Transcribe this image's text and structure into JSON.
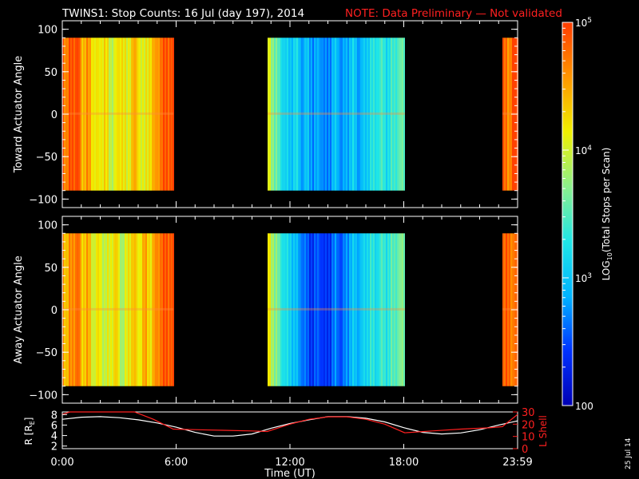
{
  "header": {
    "title": "TWINS1: Stop Counts: 16 Jul (day 197), 2014",
    "note": "NOTE: Data Preliminary — Not validated",
    "title_color": "#ffffff",
    "note_color": "#ff2020"
  },
  "side_date": "25 Jul 14",
  "chart_data": [
    {
      "type": "heatmap",
      "panel": "toward",
      "ylabel": "Toward Actuator Angle",
      "ylim": [
        -110,
        110
      ],
      "yticks": [
        "100",
        "50",
        "0",
        "−50",
        "−100"
      ],
      "xlim_hours": [
        0,
        24
      ],
      "data_y_range": [
        -90,
        90
      ],
      "data_intervals_hours": [
        [
          0.0,
          5.85
        ],
        [
          10.8,
          18.05
        ],
        [
          23.2,
          24.0
        ]
      ],
      "log10_counts_profile": [
        [
          0.0,
          4.95
        ],
        [
          0.15,
          4.6
        ],
        [
          0.4,
          4.9
        ],
        [
          0.8,
          4.95
        ],
        [
          1.0,
          4.4
        ],
        [
          1.3,
          4.6
        ],
        [
          1.6,
          4.2
        ],
        [
          1.9,
          4.1
        ],
        [
          2.2,
          4.3
        ],
        [
          2.5,
          3.9
        ],
        [
          2.8,
          4.1
        ],
        [
          3.1,
          4.3
        ],
        [
          3.4,
          3.95
        ],
        [
          3.7,
          4.5
        ],
        [
          4.0,
          4.2
        ],
        [
          4.3,
          4.0
        ],
        [
          4.6,
          4.3
        ],
        [
          4.9,
          4.5
        ],
        [
          5.2,
          4.8
        ],
        [
          5.5,
          4.9
        ],
        [
          5.85,
          4.9
        ],
        [
          10.8,
          4.1
        ],
        [
          11.1,
          3.7
        ],
        [
          11.4,
          3.4
        ],
        [
          11.7,
          3.1
        ],
        [
          12.0,
          3.0
        ],
        [
          12.3,
          3.2
        ],
        [
          12.6,
          2.8
        ],
        [
          12.9,
          3.0
        ],
        [
          13.2,
          2.7
        ],
        [
          13.5,
          2.9
        ],
        [
          13.8,
          2.6
        ],
        [
          14.1,
          2.8
        ],
        [
          14.4,
          3.0
        ],
        [
          14.7,
          2.7
        ],
        [
          15.0,
          2.9
        ],
        [
          15.3,
          3.1
        ],
        [
          15.6,
          2.8
        ],
        [
          15.9,
          3.0
        ],
        [
          16.2,
          3.2
        ],
        [
          16.5,
          3.3
        ],
        [
          16.8,
          3.4
        ],
        [
          17.1,
          3.2
        ],
        [
          17.4,
          3.4
        ],
        [
          17.7,
          3.5
        ],
        [
          18.05,
          3.6
        ],
        [
          23.2,
          4.8
        ],
        [
          23.5,
          4.6
        ],
        [
          23.7,
          4.9
        ],
        [
          24.0,
          4.95
        ]
      ]
    },
    {
      "type": "heatmap",
      "panel": "away",
      "ylabel": "Away Actuator Angle",
      "ylim": [
        -110,
        110
      ],
      "yticks": [
        "100",
        "50",
        "0",
        "−50",
        "−100"
      ],
      "xlim_hours": [
        0,
        24
      ],
      "data_y_range": [
        -90,
        90
      ],
      "data_intervals_hours": [
        [
          0.0,
          5.85
        ],
        [
          10.8,
          18.05
        ],
        [
          23.2,
          24.0
        ]
      ],
      "log10_counts_profile": [
        [
          0.0,
          4.7
        ],
        [
          0.15,
          4.3
        ],
        [
          0.4,
          4.6
        ],
        [
          0.8,
          4.8
        ],
        [
          1.0,
          4.3
        ],
        [
          1.3,
          4.5
        ],
        [
          1.6,
          4.0
        ],
        [
          1.9,
          4.2
        ],
        [
          2.2,
          3.9
        ],
        [
          2.5,
          4.1
        ],
        [
          2.8,
          4.3
        ],
        [
          3.1,
          3.8
        ],
        [
          3.4,
          4.1
        ],
        [
          3.7,
          4.4
        ],
        [
          4.0,
          4.1
        ],
        [
          4.3,
          4.5
        ],
        [
          4.6,
          4.2
        ],
        [
          4.9,
          4.6
        ],
        [
          5.2,
          4.8
        ],
        [
          5.5,
          4.9
        ],
        [
          5.85,
          4.85
        ],
        [
          10.8,
          4.2
        ],
        [
          11.1,
          3.8
        ],
        [
          11.4,
          3.5
        ],
        [
          11.7,
          3.2
        ],
        [
          12.0,
          3.1
        ],
        [
          12.3,
          2.9
        ],
        [
          12.6,
          2.7
        ],
        [
          12.9,
          2.5
        ],
        [
          13.2,
          2.4
        ],
        [
          13.5,
          2.6
        ],
        [
          13.8,
          2.3
        ],
        [
          14.1,
          2.5
        ],
        [
          14.4,
          2.7
        ],
        [
          14.7,
          2.5
        ],
        [
          15.0,
          2.8
        ],
        [
          15.3,
          3.0
        ],
        [
          15.6,
          2.9
        ],
        [
          15.9,
          3.1
        ],
        [
          16.2,
          3.3
        ],
        [
          16.5,
          3.2
        ],
        [
          16.8,
          3.4
        ],
        [
          17.1,
          3.3
        ],
        [
          17.4,
          3.5
        ],
        [
          17.7,
          3.6
        ],
        [
          18.05,
          3.7
        ],
        [
          23.2,
          4.7
        ],
        [
          23.5,
          4.9
        ],
        [
          23.7,
          4.6
        ],
        [
          24.0,
          4.9
        ]
      ]
    },
    {
      "type": "line",
      "panel": "orbit",
      "ylabel": "R [R",
      "ylabel_subscript": "E",
      "ylabel_close": "]",
      "y2label": "L Shell",
      "ylim": [
        1.5,
        8.5
      ],
      "y2lim": [
        0,
        30
      ],
      "yticks": [
        "8",
        "6",
        "4",
        "2"
      ],
      "y2ticks": [
        "30",
        "20",
        "10",
        "0"
      ],
      "xlabel": "Time (UT)",
      "xticks": [
        "0:00",
        "6:00",
        "12:00",
        "18:00",
        "23:59"
      ],
      "series": [
        {
          "color": "#ffffff",
          "x_hours": [
            0,
            1,
            2,
            3,
            4,
            5,
            6,
            7,
            8,
            9,
            10,
            11,
            12,
            13,
            14,
            15,
            16,
            17,
            18,
            19,
            20,
            21,
            22,
            23,
            24
          ],
          "values": [
            7.1,
            7.5,
            7.6,
            7.4,
            7.0,
            6.4,
            5.6,
            4.6,
            3.9,
            3.9,
            4.3,
            5.4,
            6.3,
            7.0,
            7.6,
            7.6,
            7.3,
            6.6,
            5.5,
            4.6,
            4.3,
            4.5,
            5.1,
            6.0,
            6.8
          ]
        },
        {
          "color": "#ff2020",
          "x_hours": [
            0,
            0.4,
            0.8,
            1.8,
            2.8,
            3.8,
            4.8,
            5.85,
            7,
            8.5,
            10,
            10.8,
            12,
            13,
            14,
            15,
            16,
            17,
            18.05,
            19.5,
            21,
            22.5,
            23.2,
            24
          ],
          "values": [
            28,
            30,
            30,
            30,
            30,
            30,
            24,
            16,
            15.5,
            15,
            14.5,
            14,
            20,
            24,
            26,
            26,
            24,
            20,
            13,
            14.5,
            16,
            17,
            18,
            28
          ]
        }
      ]
    }
  ],
  "colorbar": {
    "label_prefix": "LOG",
    "label_sub": "10",
    "label_suffix": "(Total Stops per Scan)",
    "ticks": [
      {
        "base": "10",
        "exp": "5",
        "value": 5
      },
      {
        "base": "10",
        "exp": "4",
        "value": 4
      },
      {
        "base": "10",
        "exp": "3",
        "value": 3
      },
      {
        "text": "100",
        "value": 2
      }
    ],
    "range": [
      2,
      5
    ],
    "colors": [
      "#0000b4",
      "#0032ff",
      "#00b4ff",
      "#20e6e6",
      "#8cf08c",
      "#f0f000",
      "#ff9600",
      "#ff3c00"
    ]
  }
}
